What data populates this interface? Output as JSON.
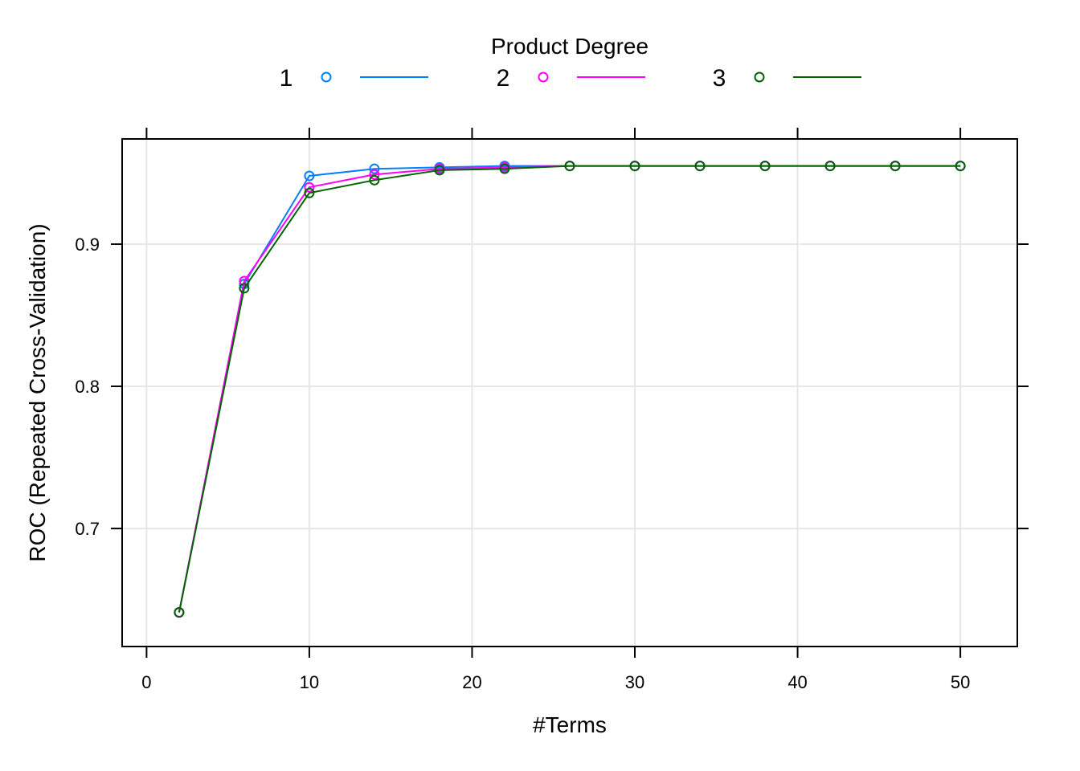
{
  "chart_data": {
    "type": "line",
    "xlabel": "#Terms",
    "ylabel": "ROC (Repeated Cross-Validation)",
    "xlim": [
      -1.5,
      53.5
    ],
    "ylim": [
      0.617,
      0.974
    ],
    "xticks": [
      0,
      10,
      20,
      30,
      40,
      50
    ],
    "yticks": [
      0.7,
      0.8,
      0.9
    ],
    "grid": true,
    "legend": {
      "title": "Product Degree",
      "placement": "top"
    },
    "series": [
      {
        "name": "1",
        "color": "#0080ff",
        "x": [
          2,
          6,
          10,
          14,
          18,
          22,
          26,
          30,
          34,
          38,
          42,
          46,
          50
        ],
        "y": [
          0.641,
          0.872,
          0.948,
          0.953,
          0.954,
          0.955,
          0.955,
          0.955,
          0.955,
          0.955,
          0.955,
          0.955,
          0.955
        ]
      },
      {
        "name": "2",
        "color": "#ff00ff",
        "x": [
          2,
          6,
          10,
          14,
          18,
          22,
          26,
          30,
          34,
          38,
          42,
          46,
          50
        ],
        "y": [
          0.641,
          0.874,
          0.94,
          0.949,
          0.953,
          0.954,
          0.955,
          0.955,
          0.955,
          0.955,
          0.955,
          0.955,
          0.955
        ]
      },
      {
        "name": "3",
        "color": "#006400",
        "x": [
          2,
          6,
          10,
          14,
          18,
          22,
          26,
          30,
          34,
          38,
          42,
          46,
          50
        ],
        "y": [
          0.641,
          0.869,
          0.936,
          0.945,
          0.952,
          0.953,
          0.955,
          0.955,
          0.955,
          0.955,
          0.955,
          0.955,
          0.955
        ]
      }
    ]
  }
}
